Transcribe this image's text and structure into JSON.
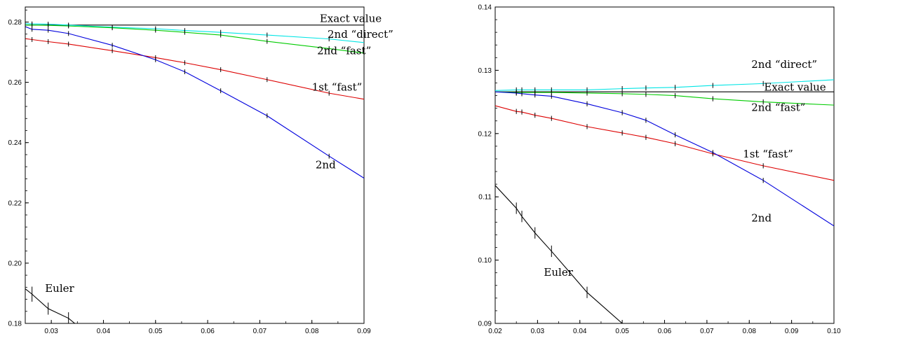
{
  "chart_data": [
    {
      "type": "line",
      "xlim": [
        0.025,
        0.09
      ],
      "ylim": [
        0.18,
        0.285
      ],
      "x_ticks": [
        "0.03",
        "0.04",
        "0.05",
        "0.06",
        "0.07",
        "0.08",
        "0.09"
      ],
      "y_ticks": [
        "0.18",
        "0.20",
        "0.22",
        "0.24",
        "0.26",
        "0.28"
      ],
      "grid": false,
      "series": [
        {
          "id": "exact",
          "color": "#000000",
          "x": [
            0.025,
            0.09
          ],
          "y": [
            0.279,
            0.279
          ],
          "err": [],
          "markers": false
        },
        {
          "id": "direct2",
          "color": "#00e5e5",
          "x": [
            0.025,
            0.0263,
            0.0294,
            0.0333,
            0.0417,
            0.05,
            0.0556,
            0.0625,
            0.0714,
            0.0833,
            0.09
          ],
          "y": [
            0.2795,
            0.2794,
            0.2793,
            0.279,
            0.2783,
            0.2778,
            0.2772,
            0.2766,
            0.2757,
            0.2744,
            0.2732
          ],
          "err": [
            0.0008,
            0.0008,
            0.0008,
            0.0008,
            0.0008,
            0.0008,
            0.0008,
            0.0008,
            0.0008,
            0.0008,
            0
          ]
        },
        {
          "id": "fast2",
          "color": "#00cc00",
          "x": [
            0.025,
            0.0263,
            0.0294,
            0.0333,
            0.0417,
            0.05,
            0.0556,
            0.0625,
            0.0714,
            0.0833,
            0.09
          ],
          "y": [
            0.279,
            0.279,
            0.2789,
            0.2787,
            0.2781,
            0.2773,
            0.2766,
            0.2757,
            0.2736,
            0.2712,
            0.2697
          ],
          "err": [
            0.0008,
            0.0008,
            0.0008,
            0.0008,
            0.0008,
            0.0008,
            0.0008,
            0.0008,
            0.0008,
            0.0008,
            0
          ]
        },
        {
          "id": "fast1",
          "color": "#dd0000",
          "x": [
            0.025,
            0.0263,
            0.0294,
            0.0333,
            0.0417,
            0.05,
            0.0556,
            0.0625,
            0.0714,
            0.0833,
            0.09
          ],
          "y": [
            0.2745,
            0.2742,
            0.2735,
            0.2727,
            0.2705,
            0.2682,
            0.2665,
            0.2642,
            0.2609,
            0.2564,
            0.2544
          ],
          "err": [
            0.0008,
            0.0008,
            0.0008,
            0.0008,
            0.0008,
            0.0008,
            0.0008,
            0.0008,
            0.0008,
            0.0008,
            0
          ]
        },
        {
          "id": "second",
          "color": "#0000dd",
          "x": [
            0.025,
            0.0263,
            0.0294,
            0.0333,
            0.0417,
            0.05,
            0.0556,
            0.0625,
            0.0714,
            0.0833,
            0.09
          ],
          "y": [
            0.2785,
            0.2776,
            0.2773,
            0.2762,
            0.2723,
            0.2675,
            0.2635,
            0.2572,
            0.2489,
            0.2355,
            0.2282
          ],
          "err": [
            0.0008,
            0.0008,
            0.0008,
            0.0008,
            0.0008,
            0.0008,
            0.0008,
            0.0008,
            0.0008,
            0.0008,
            0
          ]
        },
        {
          "id": "euler",
          "color": "#000000",
          "x": [
            0.025,
            0.0263,
            0.0294,
            0.0333,
            0.0345
          ],
          "y": [
            0.1915,
            0.1897,
            0.1849,
            0.1817,
            0.18
          ],
          "err": [
            0,
            0.0025,
            0.002,
            0.002,
            0
          ]
        }
      ],
      "annotations": [
        {
          "text": "Exact value",
          "x": 0.0815,
          "y": 0.28
        },
        {
          "text": "2nd “direct”",
          "x": 0.083,
          "y": 0.2748
        },
        {
          "text": "2nd “fast”",
          "x": 0.081,
          "y": 0.2693
        },
        {
          "text": "1st “fast”",
          "x": 0.08,
          "y": 0.2572
        },
        {
          "text": "2nd",
          "x": 0.0807,
          "y": 0.2315
        },
        {
          "text": "Euler",
          "x": 0.0288,
          "y": 0.1905
        }
      ]
    },
    {
      "type": "line",
      "xlim": [
        0.02,
        0.1
      ],
      "ylim": [
        0.09,
        0.14
      ],
      "x_ticks": [
        "0.02",
        "0.03",
        "0.04",
        "0.05",
        "0.06",
        "0.07",
        "0.08",
        "0.09",
        "0.10"
      ],
      "y_ticks": [
        "0.09",
        "0.10",
        "0.11",
        "0.12",
        "0.13",
        "0.14"
      ],
      "grid": false,
      "series": [
        {
          "id": "exact",
          "color": "#000000",
          "x": [
            0.02,
            0.1
          ],
          "y": [
            0.1266,
            0.1266
          ],
          "err": [],
          "markers": false
        },
        {
          "id": "direct2",
          "color": "#00e5e5",
          "x": [
            0.02,
            0.025,
            0.0263,
            0.0294,
            0.0333,
            0.0417,
            0.05,
            0.0556,
            0.0625,
            0.0714,
            0.0833,
            0.1
          ],
          "y": [
            0.1268,
            0.1269,
            0.1269,
            0.1269,
            0.1269,
            0.1269,
            0.1271,
            0.1272,
            0.1273,
            0.1276,
            0.1279,
            0.1285
          ],
          "err": [
            0,
            0.0004,
            0.0004,
            0.0004,
            0.0004,
            0.0004,
            0.0004,
            0.0004,
            0.0004,
            0.0004,
            0.0004,
            0
          ]
        },
        {
          "id": "fast2",
          "color": "#00cc00",
          "x": [
            0.02,
            0.025,
            0.0263,
            0.0294,
            0.0333,
            0.0417,
            0.05,
            0.0556,
            0.0625,
            0.0714,
            0.0833,
            0.1
          ],
          "y": [
            0.1266,
            0.1265,
            0.1265,
            0.1265,
            0.1265,
            0.1264,
            0.1263,
            0.1262,
            0.126,
            0.1255,
            0.125,
            0.1245
          ],
          "err": [
            0,
            0.0004,
            0.0004,
            0.0004,
            0.0004,
            0.0004,
            0.0004,
            0.0004,
            0.0004,
            0.0004,
            0.0004,
            0
          ]
        },
        {
          "id": "fast1",
          "color": "#dd0000",
          "x": [
            0.02,
            0.025,
            0.0263,
            0.0294,
            0.0333,
            0.0417,
            0.05,
            0.0556,
            0.0625,
            0.0714,
            0.0833,
            0.1
          ],
          "y": [
            0.1244,
            0.1235,
            0.1234,
            0.1229,
            0.1224,
            0.1211,
            0.1201,
            0.1194,
            0.1184,
            0.1168,
            0.1149,
            0.1126
          ],
          "err": [
            0,
            0.0004,
            0.0004,
            0.0004,
            0.0004,
            0.0004,
            0.0004,
            0.0004,
            0.0004,
            0.0004,
            0.0004,
            0
          ]
        },
        {
          "id": "second",
          "color": "#0000dd",
          "x": [
            0.02,
            0.025,
            0.0263,
            0.0294,
            0.0333,
            0.0417,
            0.05,
            0.0556,
            0.0625,
            0.0714,
            0.0833,
            0.1
          ],
          "y": [
            0.1266,
            0.1264,
            0.1263,
            0.1261,
            0.1259,
            0.1247,
            0.1233,
            0.1221,
            0.1198,
            0.117,
            0.1126,
            0.1054
          ],
          "err": [
            0,
            0.0004,
            0.0004,
            0.0004,
            0.0004,
            0.0004,
            0.0004,
            0.0004,
            0.0004,
            0.0004,
            0.0004,
            0
          ]
        },
        {
          "id": "euler",
          "color": "#000000",
          "x": [
            0.02,
            0.025,
            0.0263,
            0.0294,
            0.0333,
            0.0417,
            0.05
          ],
          "y": [
            0.1118,
            0.1082,
            0.1069,
            0.1043,
            0.1014,
            0.0949,
            0.09
          ],
          "err": [
            0,
            0.0009,
            0.0009,
            0.0009,
            0.0009,
            0.0009,
            0
          ]
        }
      ],
      "annotations": [
        {
          "text": "2nd “direct”",
          "x": 0.0805,
          "y": 0.1304
        },
        {
          "text": "Exact value",
          "x": 0.0835,
          "y": 0.1268
        },
        {
          "text": "2nd “fast”",
          "x": 0.0805,
          "y": 0.1236
        },
        {
          "text": "1st “fast”",
          "x": 0.0785,
          "y": 0.1162
        },
        {
          "text": "2nd",
          "x": 0.0805,
          "y": 0.1061
        },
        {
          "text": "Euler",
          "x": 0.0315,
          "y": 0.0975
        }
      ]
    }
  ]
}
